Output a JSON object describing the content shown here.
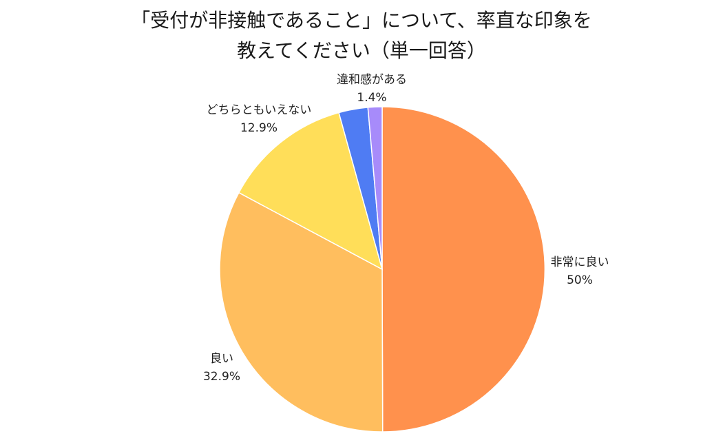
{
  "chart_data": {
    "type": "pie",
    "title_lines": [
      "「受付が非接触であること」について、率直な印象を",
      "教えてください（単一回答）"
    ],
    "slices": [
      {
        "label": "非常に良い",
        "value_label": "50%",
        "value": 50.0,
        "color": "#FF914D"
      },
      {
        "label": "良い",
        "value_label": "32.9%",
        "value": 32.9,
        "color": "#FFBE5E"
      },
      {
        "label": "どちらともいえない",
        "value_label": "12.9%",
        "value": 12.9,
        "color": "#FFDE59"
      },
      {
        "label": "",
        "value_label": "",
        "value": 2.9,
        "color": "#4F7CF3"
      },
      {
        "label": "違和感がある",
        "value_label": "1.4%",
        "value": 1.4,
        "color": "#A78BFA"
      }
    ],
    "start_angle": "12 o'clock",
    "direction": "clockwise",
    "legend": "none"
  }
}
